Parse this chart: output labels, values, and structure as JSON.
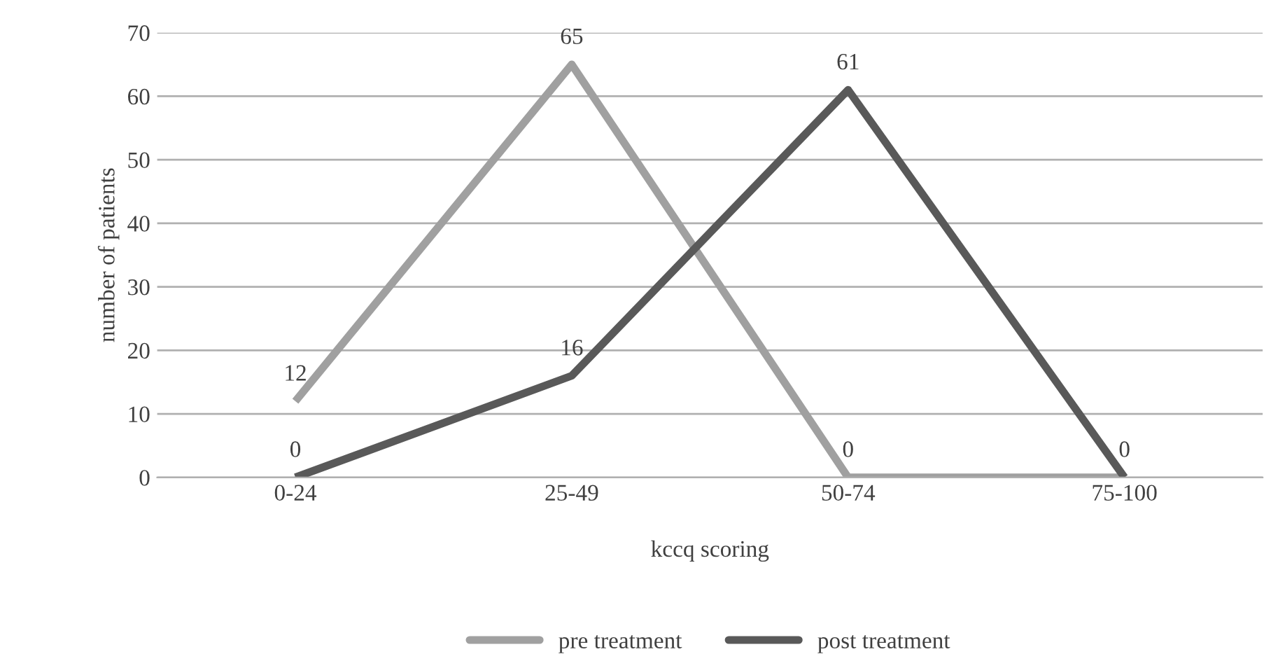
{
  "chart_data": {
    "type": "line",
    "xlabel": "kccq scoring",
    "ylabel": "number of patients",
    "categories": [
      "0-24",
      "25-49",
      "50-74",
      "75-100"
    ],
    "series": [
      {
        "name": "pre treatment",
        "color": "#a0a0a0",
        "values": [
          12,
          65,
          0,
          0
        ],
        "value_labels": [
          "12",
          "65",
          "0",
          null
        ]
      },
      {
        "name": "post treatment",
        "color": "#595959",
        "values": [
          0,
          16,
          61,
          0
        ],
        "value_labels": [
          "0",
          "16",
          "61",
          "0"
        ]
      }
    ],
    "ylim": [
      0,
      70
    ],
    "yticks": [
      0,
      10,
      20,
      30,
      40,
      50,
      60,
      70
    ],
    "grid": "y",
    "legend": "bottom",
    "marker": "none",
    "line_style": "solid"
  }
}
